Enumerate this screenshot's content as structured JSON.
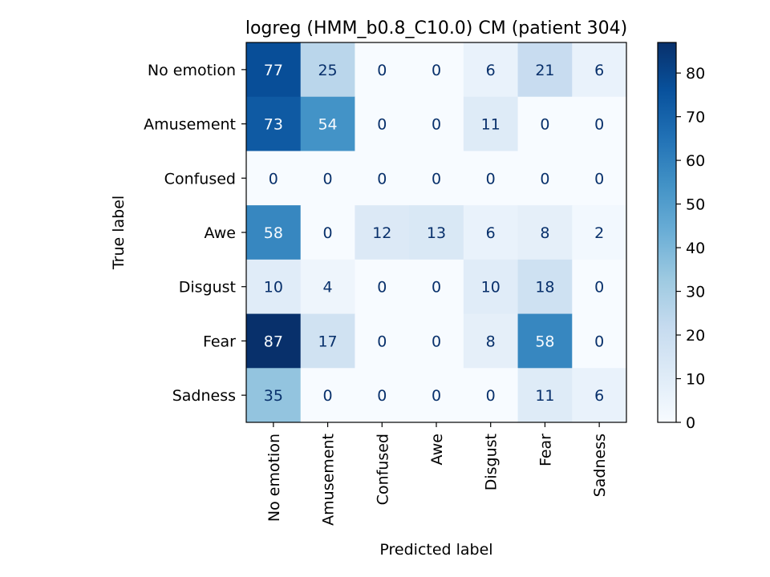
{
  "chart_data": {
    "type": "heatmap",
    "title": "logreg (HMM_b0.8_C10.0) CM (patient 304)",
    "xlabel": "Predicted label",
    "ylabel": "True label",
    "x_categories": [
      "No emotion",
      "Amusement",
      "Confused",
      "Awe",
      "Disgust",
      "Fear",
      "Sadness"
    ],
    "y_categories": [
      "No emotion",
      "Amusement",
      "Confused",
      "Awe",
      "Disgust",
      "Fear",
      "Sadness"
    ],
    "values": [
      [
        77,
        25,
        0,
        0,
        6,
        21,
        6
      ],
      [
        73,
        54,
        0,
        0,
        11,
        0,
        0
      ],
      [
        0,
        0,
        0,
        0,
        0,
        0,
        0
      ],
      [
        58,
        0,
        12,
        13,
        6,
        8,
        2
      ],
      [
        10,
        4,
        0,
        0,
        10,
        18,
        0
      ],
      [
        87,
        17,
        0,
        0,
        8,
        58,
        0
      ],
      [
        35,
        0,
        0,
        0,
        0,
        11,
        6
      ]
    ],
    "colormap": "Blues",
    "color_range": [
      0,
      87
    ],
    "colorbar_ticks": [
      0,
      10,
      20,
      30,
      40,
      50,
      60,
      70,
      80
    ]
  }
}
